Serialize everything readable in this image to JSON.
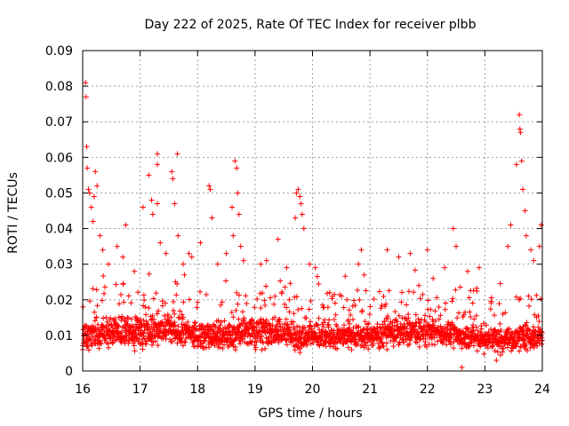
{
  "chart_data": {
    "type": "scatter",
    "title": "Day 222 of 2025, Rate Of TEC Index for receiver plbb",
    "xlabel": "GPS time / hours",
    "ylabel": "ROTI / TECUs",
    "xlim": [
      16,
      24
    ],
    "ylim": [
      0,
      0.09
    ],
    "x_ticks": [
      16,
      17,
      18,
      19,
      20,
      21,
      22,
      23,
      24
    ],
    "x_tick_labels": [
      "16",
      "17",
      "18",
      "19",
      "20",
      "21",
      "22",
      "23",
      "24"
    ],
    "y_ticks": [
      0,
      0.01,
      0.02,
      0.03,
      0.04,
      0.05,
      0.06,
      0.07,
      0.08,
      0.09
    ],
    "y_tick_labels": [
      "0",
      "0.01",
      "0.02",
      "0.03",
      "0.04",
      "0.05",
      "0.06",
      "0.07",
      "0.08",
      "0.09"
    ],
    "grid": true,
    "marker": "+",
    "marker_color": "#ff0000",
    "series": [
      {
        "name": "ROTI",
        "baseline": {
          "x": [
            16.0,
            16.5,
            17.0,
            17.5,
            18.0,
            18.5,
            19.0,
            19.5,
            19.75,
            20.0,
            20.5,
            21.0,
            21.5,
            22.0,
            22.5,
            23.0,
            23.5,
            24.0
          ],
          "median": [
            0.01,
            0.011,
            0.011,
            0.012,
            0.01,
            0.01,
            0.011,
            0.011,
            0.009,
            0.01,
            0.01,
            0.01,
            0.011,
            0.011,
            0.01,
            0.009,
            0.009,
            0.01
          ],
          "spread": [
            0.006,
            0.006,
            0.006,
            0.006,
            0.005,
            0.005,
            0.006,
            0.006,
            0.006,
            0.005,
            0.005,
            0.005,
            0.006,
            0.006,
            0.005,
            0.005,
            0.005,
            0.005
          ]
        },
        "outliers": [
          {
            "x": 16.05,
            "y": 0.081
          },
          {
            "x": 16.06,
            "y": 0.077
          },
          {
            "x": 16.07,
            "y": 0.063
          },
          {
            "x": 16.08,
            "y": 0.057
          },
          {
            "x": 16.1,
            "y": 0.051
          },
          {
            "x": 16.12,
            "y": 0.05
          },
          {
            "x": 16.15,
            "y": 0.046
          },
          {
            "x": 16.18,
            "y": 0.042
          },
          {
            "x": 16.2,
            "y": 0.049
          },
          {
            "x": 16.22,
            "y": 0.056
          },
          {
            "x": 16.25,
            "y": 0.052
          },
          {
            "x": 16.3,
            "y": 0.038
          },
          {
            "x": 16.35,
            "y": 0.034
          },
          {
            "x": 16.45,
            "y": 0.03
          },
          {
            "x": 16.6,
            "y": 0.035
          },
          {
            "x": 16.7,
            "y": 0.032
          },
          {
            "x": 16.75,
            "y": 0.041
          },
          {
            "x": 16.9,
            "y": 0.028
          },
          {
            "x": 17.05,
            "y": 0.046
          },
          {
            "x": 17.15,
            "y": 0.055
          },
          {
            "x": 17.2,
            "y": 0.048
          },
          {
            "x": 17.22,
            "y": 0.044
          },
          {
            "x": 17.3,
            "y": 0.061
          },
          {
            "x": 17.3,
            "y": 0.058
          },
          {
            "x": 17.3,
            "y": 0.047
          },
          {
            "x": 17.35,
            "y": 0.036
          },
          {
            "x": 17.45,
            "y": 0.033
          },
          {
            "x": 17.55,
            "y": 0.056
          },
          {
            "x": 17.57,
            "y": 0.054
          },
          {
            "x": 17.6,
            "y": 0.047
          },
          {
            "x": 17.65,
            "y": 0.061
          },
          {
            "x": 17.66,
            "y": 0.038
          },
          {
            "x": 17.75,
            "y": 0.03
          },
          {
            "x": 17.85,
            "y": 0.033
          },
          {
            "x": 17.9,
            "y": 0.032
          },
          {
            "x": 18.05,
            "y": 0.036
          },
          {
            "x": 18.2,
            "y": 0.052
          },
          {
            "x": 18.22,
            "y": 0.051
          },
          {
            "x": 18.25,
            "y": 0.043
          },
          {
            "x": 18.35,
            "y": 0.03
          },
          {
            "x": 18.5,
            "y": 0.033
          },
          {
            "x": 18.6,
            "y": 0.046
          },
          {
            "x": 18.62,
            "y": 0.038
          },
          {
            "x": 18.65,
            "y": 0.059
          },
          {
            "x": 18.68,
            "y": 0.057
          },
          {
            "x": 18.7,
            "y": 0.05
          },
          {
            "x": 18.72,
            "y": 0.044
          },
          {
            "x": 18.75,
            "y": 0.035
          },
          {
            "x": 18.8,
            "y": 0.031
          },
          {
            "x": 19.1,
            "y": 0.03
          },
          {
            "x": 19.2,
            "y": 0.031
          },
          {
            "x": 19.4,
            "y": 0.037
          },
          {
            "x": 19.55,
            "y": 0.029
          },
          {
            "x": 19.7,
            "y": 0.043
          },
          {
            "x": 19.72,
            "y": 0.05
          },
          {
            "x": 19.75,
            "y": 0.051
          },
          {
            "x": 19.78,
            "y": 0.049
          },
          {
            "x": 19.8,
            "y": 0.047
          },
          {
            "x": 19.82,
            "y": 0.044
          },
          {
            "x": 19.85,
            "y": 0.04
          },
          {
            "x": 19.95,
            "y": 0.03
          },
          {
            "x": 20.05,
            "y": 0.029
          },
          {
            "x": 20.3,
            "y": 0.022
          },
          {
            "x": 20.6,
            "y": 0.02
          },
          {
            "x": 20.8,
            "y": 0.03
          },
          {
            "x": 20.85,
            "y": 0.034
          },
          {
            "x": 20.9,
            "y": 0.027
          },
          {
            "x": 21.3,
            "y": 0.034
          },
          {
            "x": 21.5,
            "y": 0.032
          },
          {
            "x": 21.7,
            "y": 0.033
          },
          {
            "x": 21.85,
            "y": 0.024
          },
          {
            "x": 22.0,
            "y": 0.034
          },
          {
            "x": 22.1,
            "y": 0.026
          },
          {
            "x": 22.3,
            "y": 0.029
          },
          {
            "x": 22.45,
            "y": 0.04
          },
          {
            "x": 22.5,
            "y": 0.035
          },
          {
            "x": 22.6,
            "y": 0.001
          },
          {
            "x": 22.7,
            "y": 0.028
          },
          {
            "x": 22.9,
            "y": 0.029
          },
          {
            "x": 23.2,
            "y": 0.003
          },
          {
            "x": 23.4,
            "y": 0.035
          },
          {
            "x": 23.45,
            "y": 0.041
          },
          {
            "x": 23.55,
            "y": 0.058
          },
          {
            "x": 23.6,
            "y": 0.072
          },
          {
            "x": 23.61,
            "y": 0.068
          },
          {
            "x": 23.62,
            "y": 0.067
          },
          {
            "x": 23.64,
            "y": 0.059
          },
          {
            "x": 23.66,
            "y": 0.051
          },
          {
            "x": 23.7,
            "y": 0.045
          },
          {
            "x": 23.72,
            "y": 0.038
          },
          {
            "x": 23.8,
            "y": 0.034
          },
          {
            "x": 23.85,
            "y": 0.031
          },
          {
            "x": 23.95,
            "y": 0.035
          },
          {
            "x": 23.98,
            "y": 0.041
          }
        ]
      }
    ]
  }
}
